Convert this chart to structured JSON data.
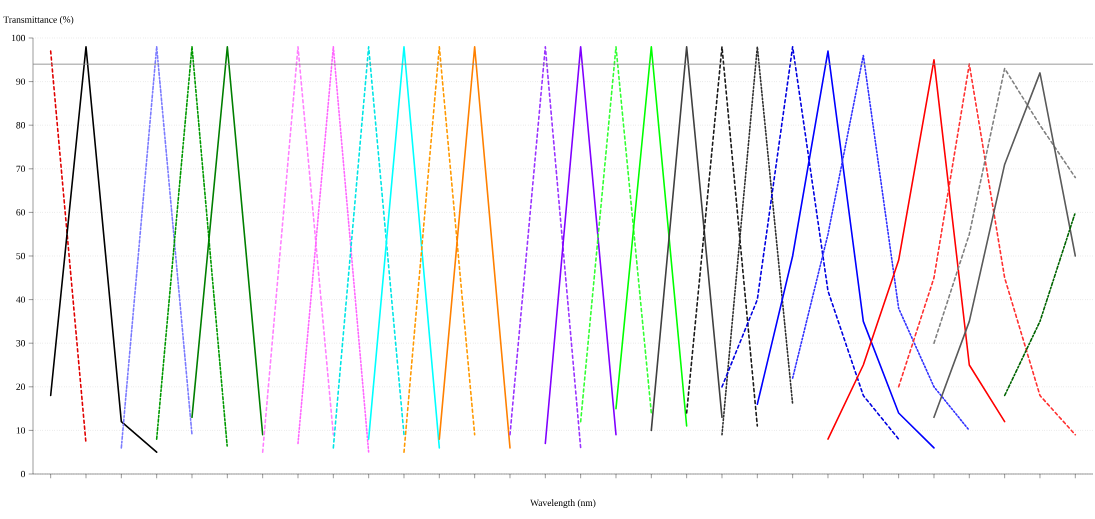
{
  "chart_data": {
    "type": "line",
    "xlabel": "Wavelength (nm)",
    "ylabel": "Transmittance (%)",
    "categories": [
      null,
      null,
      null,
      null,
      null,
      null,
      null,
      null,
      null,
      null,
      null,
      null,
      null,
      null,
      null,
      null,
      null,
      null,
      null,
      null,
      null,
      null,
      null,
      null,
      null,
      null,
      null,
      null,
      null,
      null
    ],
    "ylim": [
      0,
      100
    ],
    "yticks": [
      0,
      10,
      20,
      30,
      40,
      50,
      60,
      70,
      80,
      90,
      100
    ],
    "grid": "y",
    "ref_lines": [
      {
        "axis": "y",
        "value": 94,
        "color": "#808080"
      }
    ],
    "series": [
      {
        "color": "#e00000",
        "line_style": "dashed",
        "values": [
          97,
          7,
          null,
          null,
          null,
          null,
          null,
          null,
          null,
          null,
          null,
          null,
          null,
          null,
          null,
          null,
          null,
          null,
          null,
          null,
          null,
          null,
          null,
          null,
          null,
          null,
          null,
          null,
          null,
          null
        ]
      },
      {
        "color": "#000000",
        "line_style": "solid",
        "values": [
          18,
          98,
          12,
          5,
          null,
          null,
          null,
          null,
          null,
          null,
          null,
          null,
          null,
          null,
          null,
          null,
          null,
          null,
          null,
          null,
          null,
          null,
          null,
          null,
          null,
          null,
          null,
          null,
          null,
          null
        ]
      },
      {
        "color": "#7b7bff",
        "line_style": "dashdot",
        "values": [
          null,
          null,
          6,
          98,
          9,
          null,
          null,
          null,
          null,
          null,
          null,
          null,
          null,
          null,
          null,
          null,
          null,
          null,
          null,
          null,
          null,
          null,
          null,
          null,
          null,
          null,
          null,
          null,
          null,
          null
        ]
      },
      {
        "color": "#009900",
        "line_style": "dashdot",
        "values": [
          null,
          null,
          null,
          8,
          98,
          6,
          null,
          null,
          null,
          null,
          null,
          null,
          null,
          null,
          null,
          null,
          null,
          null,
          null,
          null,
          null,
          null,
          null,
          null,
          null,
          null,
          null,
          null,
          null,
          null
        ]
      },
      {
        "color": "#007f00",
        "line_style": "solid",
        "values": [
          null,
          null,
          null,
          null,
          13,
          98,
          9,
          null,
          null,
          null,
          null,
          null,
          null,
          null,
          null,
          null,
          null,
          null,
          null,
          null,
          null,
          null,
          null,
          null,
          null,
          null,
          null,
          null,
          null,
          null
        ]
      },
      {
        "color": "#ff80ff",
        "line_style": "dashed",
        "values": [
          null,
          null,
          null,
          null,
          null,
          null,
          5,
          98,
          9,
          null,
          null,
          null,
          null,
          null,
          null,
          null,
          null,
          null,
          null,
          null,
          null,
          null,
          null,
          null,
          null,
          null,
          null,
          null,
          null,
          null
        ]
      },
      {
        "color": "#ff66ff",
        "line_style": "dotted",
        "values": [
          null,
          null,
          null,
          null,
          null,
          null,
          null,
          7,
          98,
          5,
          null,
          null,
          null,
          null,
          null,
          null,
          null,
          null,
          null,
          null,
          null,
          null,
          null,
          null,
          null,
          null,
          null,
          null,
          null,
          null
        ]
      },
      {
        "color": "#00e5e5",
        "line_style": "dashed",
        "values": [
          null,
          null,
          null,
          null,
          null,
          null,
          null,
          null,
          6,
          98,
          9,
          null,
          null,
          null,
          null,
          null,
          null,
          null,
          null,
          null,
          null,
          null,
          null,
          null,
          null,
          null,
          null,
          null,
          null,
          null
        ]
      },
      {
        "color": "#00ffff",
        "line_style": "solid",
        "values": [
          null,
          null,
          null,
          null,
          null,
          null,
          null,
          null,
          null,
          8,
          98,
          6,
          null,
          null,
          null,
          null,
          null,
          null,
          null,
          null,
          null,
          null,
          null,
          null,
          null,
          null,
          null,
          null,
          null,
          null
        ]
      },
      {
        "color": "#ff9900",
        "line_style": "dashed",
        "values": [
          null,
          null,
          null,
          null,
          null,
          null,
          null,
          null,
          null,
          null,
          5,
          98,
          9,
          null,
          null,
          null,
          null,
          null,
          null,
          null,
          null,
          null,
          null,
          null,
          null,
          null,
          null,
          null,
          null,
          null
        ]
      },
      {
        "color": "#ff8000",
        "line_style": "solid",
        "values": [
          null,
          null,
          null,
          null,
          null,
          null,
          null,
          null,
          null,
          null,
          null,
          8,
          98,
          6,
          null,
          null,
          null,
          null,
          null,
          null,
          null,
          null,
          null,
          null,
          null,
          null,
          null,
          null,
          null,
          null
        ]
      },
      {
        "color": "#9933ff",
        "line_style": "dashed",
        "values": [
          null,
          null,
          null,
          null,
          null,
          null,
          null,
          null,
          null,
          null,
          null,
          null,
          null,
          9,
          98,
          6,
          null,
          null,
          null,
          null,
          null,
          null,
          null,
          null,
          null,
          null,
          null,
          null,
          null,
          null
        ]
      },
      {
        "color": "#8000ff",
        "line_style": "solid",
        "values": [
          null,
          null,
          null,
          null,
          null,
          null,
          null,
          null,
          null,
          null,
          null,
          null,
          null,
          null,
          7,
          98,
          9,
          null,
          null,
          null,
          null,
          null,
          null,
          null,
          null,
          null,
          null,
          null,
          null,
          null
        ]
      },
      {
        "color": "#33ff33",
        "line_style": "dashed",
        "values": [
          null,
          null,
          null,
          null,
          null,
          null,
          null,
          null,
          null,
          null,
          null,
          null,
          null,
          null,
          null,
          12,
          98,
          14,
          null,
          null,
          null,
          null,
          null,
          null,
          null,
          null,
          null,
          null,
          null,
          null
        ]
      },
      {
        "color": "#00ff00",
        "line_style": "solid",
        "values": [
          null,
          null,
          null,
          null,
          null,
          null,
          null,
          null,
          null,
          null,
          null,
          null,
          null,
          null,
          null,
          null,
          15,
          98,
          11,
          null,
          null,
          null,
          null,
          null,
          null,
          null,
          null,
          null,
          null,
          null
        ]
      },
      {
        "color": "#404040",
        "line_style": "solid",
        "values": [
          null,
          null,
          null,
          null,
          null,
          null,
          null,
          null,
          null,
          null,
          null,
          null,
          null,
          null,
          null,
          null,
          null,
          10,
          98,
          13,
          null,
          null,
          null,
          null,
          null,
          null,
          null,
          null,
          null,
          null
        ]
      },
      {
        "color": "#1a1a1a",
        "line_style": "dashed",
        "values": [
          null,
          null,
          null,
          null,
          null,
          null,
          null,
          null,
          null,
          null,
          null,
          null,
          null,
          null,
          null,
          null,
          null,
          null,
          14,
          98,
          11,
          null,
          null,
          null,
          null,
          null,
          null,
          null,
          null,
          null
        ]
      },
      {
        "color": "#303030",
        "line_style": "dotted",
        "values": [
          null,
          null,
          null,
          null,
          null,
          null,
          null,
          null,
          null,
          null,
          null,
          null,
          null,
          null,
          null,
          null,
          null,
          null,
          null,
          9,
          98,
          16,
          null,
          null,
          null,
          null,
          null,
          null,
          null,
          null
        ]
      },
      {
        "color": "#0000e0",
        "line_style": "dashed",
        "values": [
          null,
          null,
          null,
          null,
          null,
          null,
          null,
          null,
          null,
          null,
          null,
          null,
          null,
          null,
          null,
          null,
          null,
          null,
          null,
          20,
          40,
          98,
          42,
          18,
          8,
          null,
          null,
          null,
          null,
          null
        ]
      },
      {
        "color": "#0000ff",
        "line_style": "solid",
        "values": [
          null,
          null,
          null,
          null,
          null,
          null,
          null,
          null,
          null,
          null,
          null,
          null,
          null,
          null,
          null,
          null,
          null,
          null,
          null,
          null,
          16,
          50,
          97,
          35,
          14,
          6,
          null,
          null,
          null,
          null
        ]
      },
      {
        "color": "#3333ff",
        "line_style": "dotted",
        "values": [
          null,
          null,
          null,
          null,
          null,
          null,
          null,
          null,
          null,
          null,
          null,
          null,
          null,
          null,
          null,
          null,
          null,
          null,
          null,
          null,
          null,
          22,
          55,
          96,
          38,
          20,
          10,
          null,
          null,
          null
        ]
      },
      {
        "color": "#ff0000",
        "line_style": "solid",
        "values": [
          null,
          null,
          null,
          null,
          null,
          null,
          null,
          null,
          null,
          null,
          null,
          null,
          null,
          null,
          null,
          null,
          null,
          null,
          null,
          null,
          null,
          null,
          8,
          25,
          49,
          95,
          25,
          12,
          null,
          null
        ]
      },
      {
        "color": "#ff3030",
        "line_style": "dashed",
        "values": [
          null,
          null,
          null,
          null,
          null,
          null,
          null,
          null,
          null,
          null,
          null,
          null,
          null,
          null,
          null,
          null,
          null,
          null,
          null,
          null,
          null,
          null,
          null,
          null,
          20,
          45,
          94,
          45,
          18,
          9
        ]
      },
      {
        "color": "#808080",
        "line_style": "dashed",
        "values": [
          null,
          null,
          null,
          null,
          null,
          null,
          null,
          null,
          null,
          null,
          null,
          null,
          null,
          null,
          null,
          null,
          null,
          null,
          null,
          null,
          null,
          null,
          null,
          null,
          null,
          30,
          55,
          93,
          80,
          68
        ]
      },
      {
        "color": "#5a5a5a",
        "line_style": "solid",
        "values": [
          null,
          null,
          null,
          null,
          null,
          null,
          null,
          null,
          null,
          null,
          null,
          null,
          null,
          null,
          null,
          null,
          null,
          null,
          null,
          null,
          null,
          null,
          null,
          null,
          null,
          13,
          35,
          71,
          92,
          50
        ]
      },
      {
        "color": "#006400",
        "line_style": "dashdot",
        "values": [
          null,
          null,
          null,
          null,
          null,
          null,
          null,
          null,
          null,
          null,
          null,
          null,
          null,
          null,
          null,
          null,
          null,
          null,
          null,
          null,
          null,
          null,
          null,
          null,
          null,
          null,
          null,
          18,
          35,
          60
        ]
      }
    ]
  }
}
